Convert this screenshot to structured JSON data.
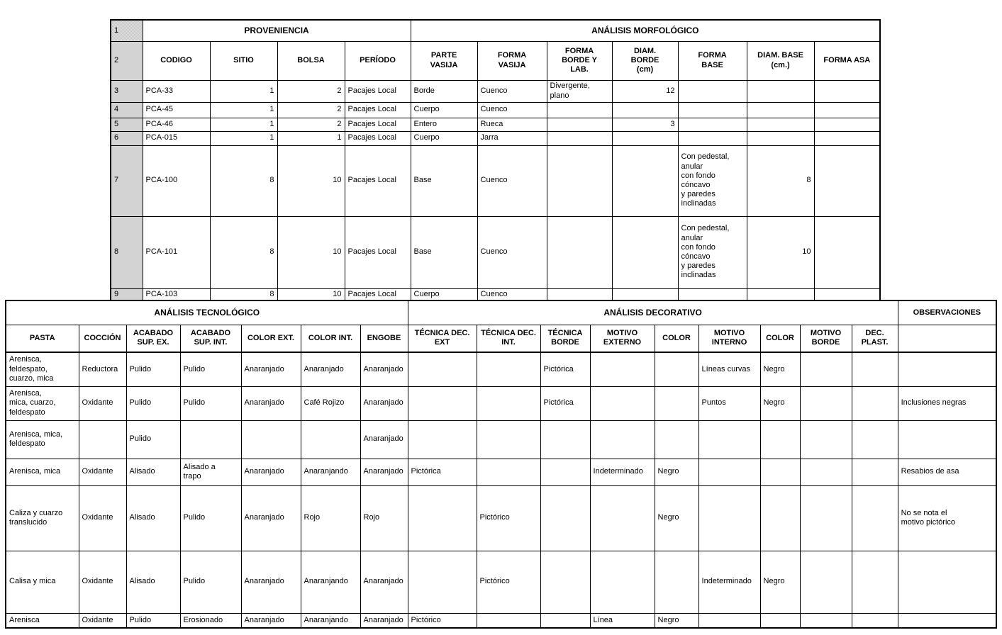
{
  "top_table": {
    "sections": [
      "PROVENIENCIA",
      "ANÁLISIS MORFOLÓGICO"
    ],
    "row_numbers": [
      "1",
      "2",
      "3",
      "4",
      "5",
      "6",
      "7",
      "8",
      "9"
    ],
    "columns": [
      "CODIGO",
      "SITIO",
      "BOLSA",
      "PERÍODO",
      "PARTE\nVASIJA",
      "FORMA\nVASIJA",
      "FORMA\nBORDE Y\nLAB.",
      "DIAM.\nBORDE\n(cm)",
      "FORMA\nBASE",
      "DIAM. BASE\n(cm.)",
      "FORMA ASA"
    ],
    "rows": [
      [
        "PCA-33",
        "1",
        "2",
        "Pacajes Local",
        "Borde",
        "Cuenco",
        "Divergente,\nplano",
        "12",
        "",
        "",
        ""
      ],
      [
        "PCA-45",
        "1",
        "2",
        "Pacajes Local",
        "Cuerpo",
        "Cuenco",
        "",
        "",
        "",
        "",
        ""
      ],
      [
        "PCA-46",
        "1",
        "2",
        "Pacajes Local",
        "Entero",
        "Rueca",
        "",
        "3",
        "",
        "",
        ""
      ],
      [
        "PCA-015",
        "1",
        "1",
        "Pacajes Local",
        "Cuerpo",
        "Jarra",
        "",
        "",
        "",
        "",
        ""
      ],
      [
        "PCA-100",
        "8",
        "10",
        "Pacajes Local",
        "Base",
        "Cuenco",
        "",
        "",
        "Con pedestal,\nanular\ncon fondo\ncóncavo\ny paredes\ninclinadas",
        "8",
        ""
      ],
      [
        "PCA-101",
        "8",
        "10",
        "Pacajes Local",
        "Base",
        "Cuenco",
        "",
        "",
        "Con pedestal,\nanular\ncon fondo\ncóncavo\ny paredes\ninclinadas",
        "10",
        ""
      ],
      [
        "PCA-103",
        "8",
        "10",
        "Pacajes Local",
        "Cuerpo",
        "Cuenco",
        "",
        "",
        "",
        "",
        ""
      ]
    ]
  },
  "bottom_table": {
    "sections": [
      "ANÁLISIS TECNOLÓGICO",
      "ANÁLISIS DECORATIVO",
      "OBSERVACIONES"
    ],
    "columns": [
      "PASTA",
      "COCCIÓN",
      "ACABADO\nSUP. EX.",
      "ACABADO\nSUP. INT.",
      "COLOR EXT.",
      "COLOR INT.",
      "ENGOBE",
      "TÉCNICA DEC.\nEXT",
      "TÉCNICA DEC.\nINT.",
      "TÉCNICA\nBORDE",
      "MOTIVO\nEXTERNO",
      "COLOR",
      "MOTIVO\nINTERNO",
      "COLOR",
      "MOTIVO\nBORDE",
      "DEC.\nPLAST."
    ],
    "rows": [
      [
        "Arenisca,\nfeldespato,\ncuarzo, mica",
        "Reductora",
        "Pulido",
        "Pulido",
        "Anaranjado",
        "Anaranjado",
        "Anaranjado",
        "",
        "",
        "Pictórica",
        "",
        "",
        "Líneas curvas",
        "Negro",
        "",
        "",
        ""
      ],
      [
        "Arenisca,\nmica, cuarzo,\nfeldespato",
        "Oxidante",
        "Pulido",
        "Pulido",
        "Anaranjado",
        "Café Rojizo",
        "Anaranjado",
        "",
        "",
        "Pictórica",
        "",
        "",
        "Puntos",
        "Negro",
        "",
        "",
        "Inclusiones negras"
      ],
      [
        "Arenisca, mica,\nfeldespato",
        "",
        "Pulido",
        "",
        "",
        "",
        "Anaranjado",
        "",
        "",
        "",
        "",
        "",
        "",
        "",
        "",
        "",
        ""
      ],
      [
        "Arenisca, mica",
        "Oxidante",
        "Alisado",
        "Alisado a\ntrapo",
        "Anaranjado",
        "Anaranjando",
        "Anaranjado",
        "Pictórica",
        "",
        "",
        "Indeterminado",
        "Negro",
        "",
        "",
        "",
        "",
        "Resabios de asa"
      ],
      [
        "Caliza y cuarzo\ntranslucido",
        "Oxidante",
        "Alisado",
        "Pulido",
        "Anaranjado",
        "Rojo",
        "Rojo",
        "",
        "Pictórico",
        "",
        "",
        "Negro",
        "",
        "",
        "",
        "",
        "No se nota el\nmotivo pictórico"
      ],
      [
        "Calisa y mica",
        "Oxidante",
        "Alisado",
        "Pulido",
        "Anaranjado",
        "Anaranjando",
        "Anaranjado",
        "",
        "Pictórico",
        "",
        "",
        "",
        "Indeterminado",
        "Negro",
        "",
        "",
        ""
      ],
      [
        "Arenisca",
        "Oxidante",
        "Pulido",
        "Erosionado",
        "Anaranjado",
        "Anaranjando",
        "Anaranjado",
        "Pictórico",
        "",
        "",
        "Línea",
        "Negro",
        "",
        "",
        "",
        "",
        ""
      ]
    ]
  }
}
